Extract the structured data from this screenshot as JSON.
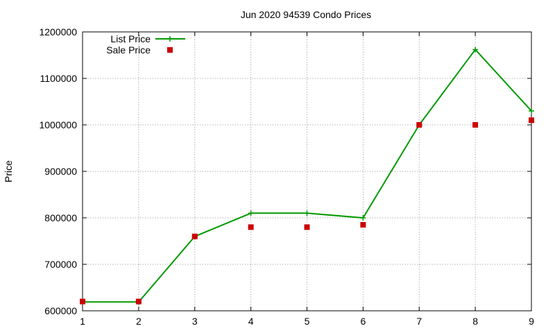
{
  "chart_data": {
    "type": "line",
    "title": "Jun 2020 94539 Condo Prices",
    "xlabel": "",
    "ylabel": "Price",
    "x": [
      1,
      2,
      3,
      4,
      5,
      6,
      7,
      8,
      9
    ],
    "xlim": [
      1,
      9
    ],
    "ylim": [
      600000,
      1200000
    ],
    "x_ticks": [
      "1",
      "2",
      "3",
      "4",
      "5",
      "6",
      "7",
      "8",
      "9"
    ],
    "y_ticks": [
      "600000",
      "700000",
      "800000",
      "900000",
      "1000000",
      "1100000",
      "1200000"
    ],
    "grid": true,
    "legend_position": "top-left",
    "series": [
      {
        "name": "List Price",
        "style": "line+plus",
        "color": "#009900",
        "values": [
          619000,
          619000,
          760000,
          810000,
          810000,
          800000,
          1000000,
          1162000,
          1030000
        ]
      },
      {
        "name": "Sale Price",
        "style": "square-points",
        "color": "#cc0000",
        "values": [
          620000,
          620000,
          760000,
          780000,
          780000,
          785000,
          1000000,
          1000000,
          1010000
        ]
      }
    ]
  }
}
